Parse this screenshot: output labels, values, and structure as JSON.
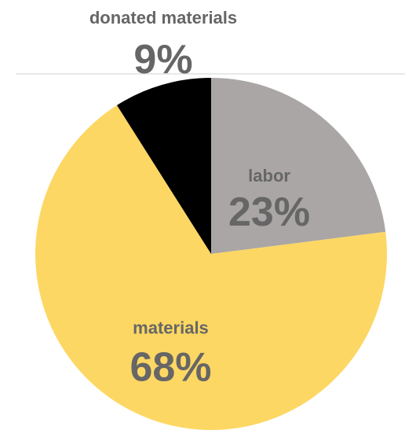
{
  "chart_data": {
    "type": "pie",
    "slices": [
      {
        "label": "labor",
        "value": 23,
        "display": "23%",
        "color": "#aaa6a5",
        "text_color": "#666666"
      },
      {
        "label": "materials",
        "value": 68,
        "display": "68%",
        "color": "#fdd763",
        "text_color": "#666666"
      },
      {
        "label": "donated materials",
        "value": 9,
        "display": "9%",
        "color": "#000000",
        "text_color": "#666666"
      }
    ],
    "start_angle_deg": 0,
    "direction": "clockwise",
    "label_outside": "donated materials"
  }
}
